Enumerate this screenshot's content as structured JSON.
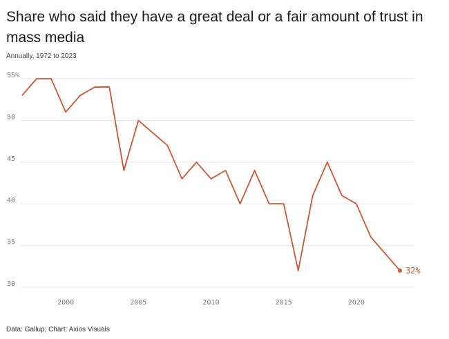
{
  "title": "Share who said they have a great deal or a fair amount of trust in mass media",
  "subtitle": "Annually, 1972 to 2023",
  "source": "Data: Gallup; Chart: Axios Visuals",
  "colors": {
    "line": "#d2532f",
    "grid": "#e6e6e6",
    "tick": "#777777"
  },
  "chart_data": {
    "type": "line",
    "title": "Share who said they have a great deal or a fair amount of trust in mass media",
    "subtitle": "Annually, 1972 to 2023",
    "xlabel": "",
    "ylabel": "",
    "xlim": [
      1997,
      2024
    ],
    "ylim": [
      30,
      55
    ],
    "grid": true,
    "x_ticks": [
      2000,
      2005,
      2010,
      2015,
      2020
    ],
    "y_ticks": [
      30,
      35,
      40,
      45,
      50,
      55
    ],
    "y_tick_labels": [
      "30",
      "35",
      "40",
      "45",
      "50",
      "55%"
    ],
    "series": [
      {
        "x": [
          1997,
          1998,
          1999,
          2000,
          2001,
          2002,
          2003,
          2004,
          2005,
          2006,
          2007,
          2008,
          2009,
          2010,
          2011,
          2012,
          2013,
          2014,
          2015,
          2016,
          2017,
          2018,
          2019,
          2020,
          2021,
          2022,
          2023
        ],
        "values": [
          53,
          55,
          55,
          51,
          53,
          54,
          54,
          44,
          50,
          48.5,
          47,
          43,
          45,
          43,
          44,
          40,
          44,
          40,
          40,
          32,
          41,
          45,
          41,
          40,
          36,
          34,
          32
        ]
      }
    ],
    "end_label": "32%"
  }
}
